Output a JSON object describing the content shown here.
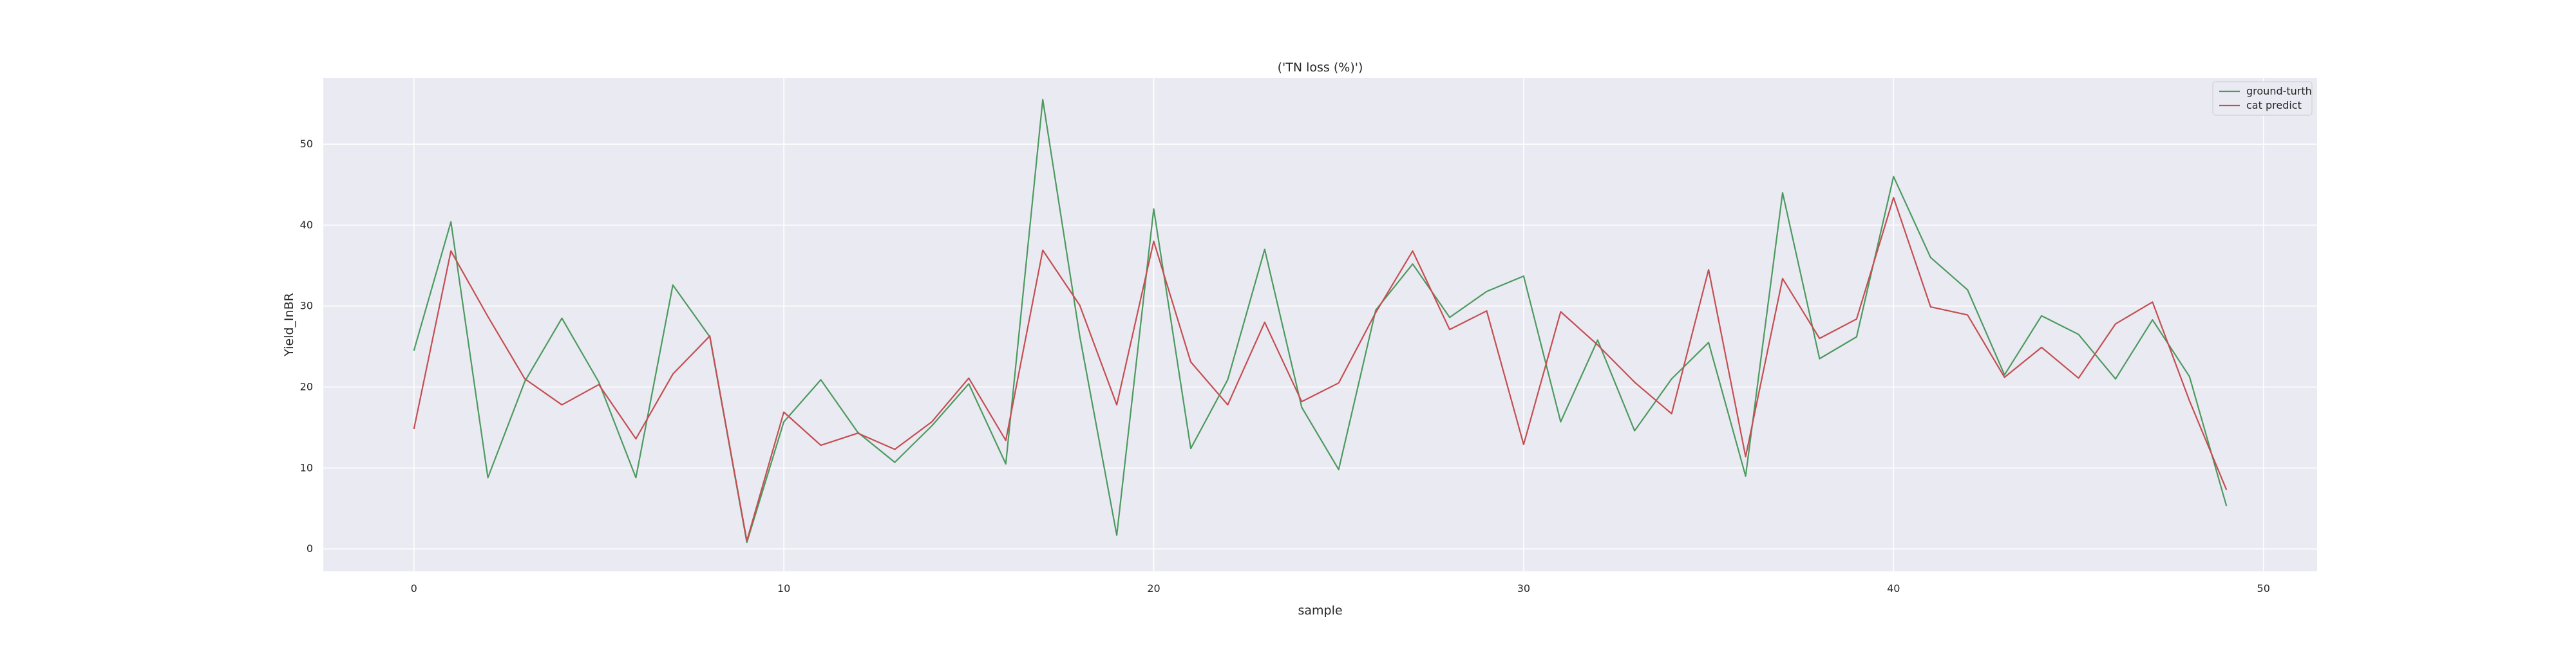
{
  "chart_data": {
    "type": "line",
    "title": "('TN loss (%)')",
    "xlabel": "sample",
    "ylabel": "Yield_InBR",
    "xlim": [
      -2.45,
      51.45
    ],
    "ylim": [
      -2.77,
      58.19
    ],
    "xticks": [
      0,
      10,
      20,
      30,
      40,
      50
    ],
    "yticks": [
      0,
      10,
      20,
      30,
      40,
      50
    ],
    "grid": true,
    "legend_position": "top-right",
    "x": [
      0,
      1,
      2,
      3,
      4,
      5,
      6,
      7,
      8,
      9,
      10,
      11,
      12,
      13,
      14,
      15,
      16,
      17,
      18,
      19,
      20,
      21,
      22,
      23,
      24,
      25,
      26,
      27,
      28,
      29,
      30,
      31,
      32,
      33,
      34,
      35,
      36,
      37,
      38,
      39,
      40,
      41,
      42,
      43,
      44,
      45,
      46,
      47,
      48,
      49
    ],
    "series": [
      {
        "name": "ground-turth",
        "color": "#4c9a5f",
        "values": [
          24.5,
          40.4,
          8.8,
          20.7,
          28.5,
          20.6,
          8.8,
          32.6,
          26.2,
          0.8,
          15.7,
          20.9,
          14.4,
          10.7,
          15.2,
          20.4,
          10.5,
          55.5,
          26.3,
          1.7,
          42.0,
          12.4,
          20.9,
          37.0,
          17.5,
          9.8,
          29.5,
          35.2,
          28.6,
          31.8,
          33.7,
          15.7,
          25.8,
          14.6,
          21.0,
          25.5,
          9.0,
          44.0,
          23.5,
          26.2,
          46.0,
          36.0,
          32.0,
          21.5,
          28.8,
          26.5,
          21.0,
          28.3,
          21.3,
          5.3
        ]
      },
      {
        "name": "cat predict",
        "color": "#c44e52",
        "values": [
          14.8,
          36.8,
          28.7,
          21.0,
          17.8,
          20.3,
          13.6,
          21.6,
          26.3,
          1.0,
          16.9,
          12.8,
          14.3,
          12.3,
          15.7,
          21.1,
          13.4,
          36.9,
          30.1,
          17.8,
          38.0,
          23.1,
          17.8,
          28.0,
          18.2,
          20.5,
          29.2,
          36.8,
          27.1,
          29.4,
          12.9,
          29.3,
          25.2,
          20.6,
          16.7,
          34.5,
          11.4,
          33.4,
          26.0,
          28.4,
          43.4,
          29.9,
          28.9,
          21.2,
          24.9,
          21.1,
          27.8,
          30.5,
          18.3,
          7.3
        ]
      }
    ]
  }
}
